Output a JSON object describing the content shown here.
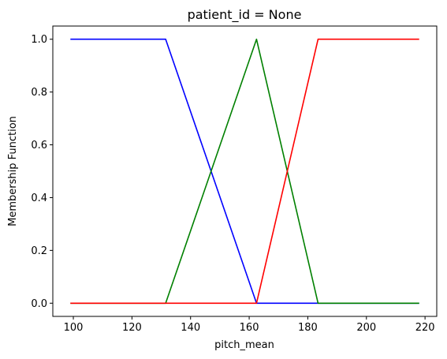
{
  "chart_data": {
    "type": "line",
    "title": "patient_id = None",
    "xlabel": "pitch_mean",
    "ylabel": "Membership Function",
    "xlim": [
      93,
      224
    ],
    "ylim": [
      -0.05,
      1.05
    ],
    "xticks": [
      100,
      120,
      140,
      160,
      180,
      200,
      220
    ],
    "xtick_labels": [
      "100",
      "120",
      "140",
      "160",
      "180",
      "200",
      "220"
    ],
    "yticks": [
      0.0,
      0.2,
      0.4,
      0.6,
      0.8,
      1.0
    ],
    "ytick_labels": [
      "0.0",
      "0.2",
      "0.4",
      "0.6",
      "0.8",
      "1.0"
    ],
    "grid": false,
    "series": [
      {
        "color": "#0000ff",
        "x": [
          99,
          131.5,
          162.5,
          218
        ],
        "y": [
          1.0,
          1.0,
          0.0,
          0.0
        ]
      },
      {
        "color": "#008000",
        "x": [
          99,
          131.5,
          162.5,
          183.5,
          218
        ],
        "y": [
          0.0,
          0.0,
          1.0,
          0.0,
          0.0
        ]
      },
      {
        "color": "#ff0000",
        "x": [
          99,
          162.5,
          183.5,
          218
        ],
        "y": [
          0.0,
          0.0,
          1.0,
          1.0
        ]
      }
    ]
  }
}
